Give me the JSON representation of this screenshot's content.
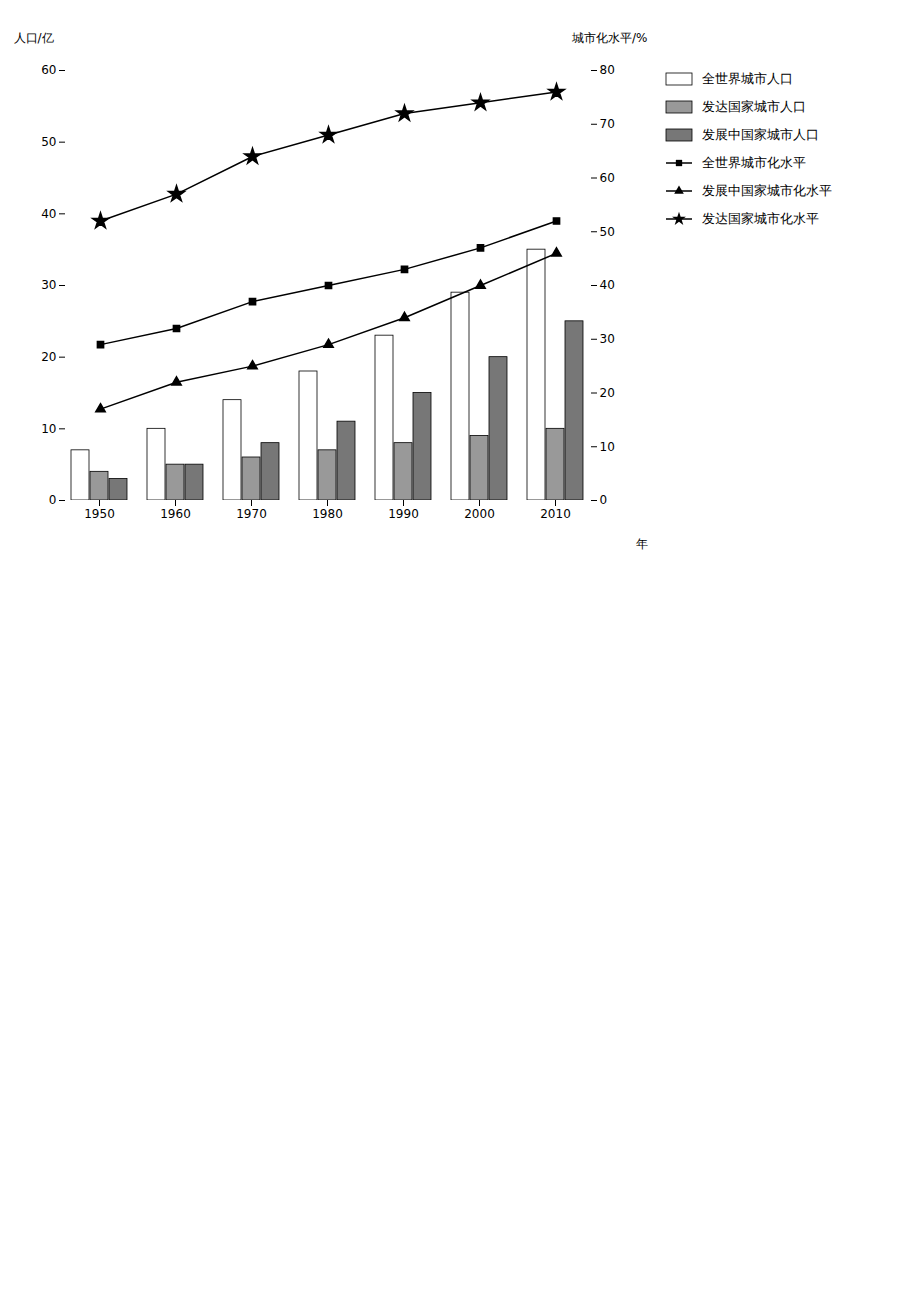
{
  "chart_data": {
    "type": "bar",
    "categories": [
      "1950",
      "1960",
      "1970",
      "1980",
      "1990",
      "2000",
      "2010"
    ],
    "xlabel": "年",
    "ylabel": "人口/亿",
    "y2label": "城市化水平/%",
    "ylim": [
      0,
      60
    ],
    "yticks": [
      0,
      10,
      20,
      30,
      40,
      50,
      60
    ],
    "y2lim": [
      0,
      80
    ],
    "y2ticks": [
      0,
      10,
      20,
      30,
      40,
      50,
      60,
      70,
      80
    ],
    "grid": false,
    "legend": "right",
    "series": [
      {
        "name": "全世界城市人口",
        "type": "bar",
        "color": "#ffffff",
        "values": [
          7,
          10,
          14,
          18,
          23,
          29,
          35
        ]
      },
      {
        "name": "发达国家城市人口",
        "type": "bar",
        "color": "#999999",
        "values": [
          4,
          5,
          6,
          7,
          8,
          9,
          10
        ]
      },
      {
        "name": "发展中国家城市人口",
        "type": "bar",
        "color": "#777777",
        "values": [
          3,
          5,
          8,
          11,
          15,
          20,
          25
        ]
      },
      {
        "name": "全世界城市化水平",
        "type": "line",
        "axis": "y2",
        "color": "#000000",
        "marker": "square",
        "values": [
          29,
          32,
          37,
          40,
          43,
          47,
          52
        ]
      },
      {
        "name": "发展中国家城市化水平",
        "type": "line",
        "axis": "y2",
        "color": "#000000",
        "marker": "triangle",
        "values": [
          17,
          22,
          25,
          29,
          34,
          40,
          46
        ]
      },
      {
        "name": "发达国家城市化水平",
        "type": "line",
        "axis": "y2",
        "color": "#000000",
        "marker": "star",
        "values": [
          52,
          57,
          64,
          68,
          72,
          74,
          76
        ]
      }
    ]
  }
}
